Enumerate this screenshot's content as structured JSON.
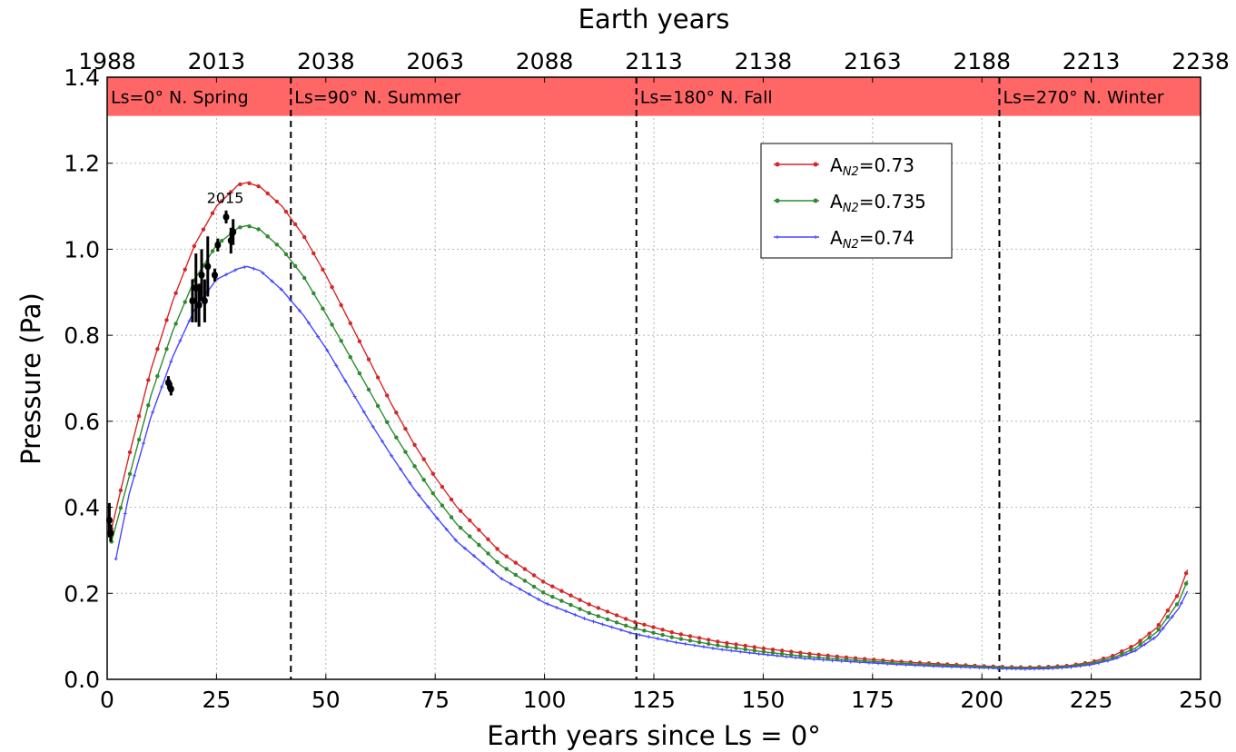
{
  "chart_data": {
    "type": "line",
    "xlabel": "Earth years since Ls = 0°",
    "ylabel": "Pressure (Pa)",
    "top_xlabel": "Earth years",
    "xlim": [
      0,
      250
    ],
    "ylim": [
      0.0,
      1.4
    ],
    "x_ticks": [
      0,
      25,
      50,
      75,
      100,
      125,
      150,
      175,
      200,
      225,
      250
    ],
    "y_ticks": [
      "0.0",
      "0.2",
      "0.4",
      "0.6",
      "0.8",
      "1.0",
      "1.2",
      "1.4"
    ],
    "top_x_ticks": [
      "1988",
      "2013",
      "2038",
      "2063",
      "2088",
      "2113",
      "2138",
      "2163",
      "2188",
      "2213",
      "2238"
    ],
    "grid": true,
    "legend_position": "upper-right",
    "season_band": {
      "y_range": [
        1.31,
        1.4
      ],
      "color": "#ff6666",
      "boundaries": [
        0,
        42,
        121,
        204,
        250
      ],
      "labels": [
        "Ls=0°  N. Spring",
        "Ls=90°  N. Summer",
        "Ls=180°  N. Fall",
        "Ls=270°  N. Winter"
      ],
      "dashed_lines_x": [
        42,
        121,
        204
      ]
    },
    "annotation": {
      "text": "2015",
      "x": 27,
      "y": 1.12
    },
    "series": [
      {
        "name_prefix": "A",
        "name_subscript": "N2",
        "name_value": "=0.73",
        "color": "#d62728",
        "marker": "circle",
        "x": [
          1,
          5,
          10,
          15,
          20,
          25,
          30,
          32,
          35,
          40,
          45,
          50,
          55,
          60,
          65,
          70,
          75,
          80,
          90,
          100,
          110,
          120,
          130,
          140,
          150,
          160,
          170,
          180,
          190,
          200,
          205,
          210,
          215,
          220,
          225,
          230,
          235,
          240,
          245,
          247
        ],
        "y": [
          0.35,
          0.52,
          0.72,
          0.88,
          1.01,
          1.1,
          1.15,
          1.155,
          1.145,
          1.1,
          1.03,
          0.94,
          0.84,
          0.74,
          0.64,
          0.55,
          0.47,
          0.4,
          0.295,
          0.225,
          0.175,
          0.135,
          0.107,
          0.087,
          0.072,
          0.06,
          0.05,
          0.042,
          0.036,
          0.031,
          0.029,
          0.028,
          0.029,
          0.032,
          0.04,
          0.055,
          0.08,
          0.12,
          0.2,
          0.255
        ]
      },
      {
        "name_prefix": "A",
        "name_subscript": "N2",
        "name_value": "=0.735",
        "color": "#2e8b2e",
        "marker": "circle",
        "x": [
          1,
          5,
          10,
          15,
          20,
          25,
          30,
          32,
          35,
          40,
          45,
          50,
          55,
          60,
          65,
          70,
          75,
          80,
          90,
          100,
          110,
          120,
          130,
          140,
          150,
          160,
          170,
          180,
          190,
          200,
          205,
          210,
          215,
          220,
          225,
          230,
          235,
          240,
          245,
          247
        ],
        "y": [
          0.32,
          0.47,
          0.66,
          0.81,
          0.93,
          1.01,
          1.05,
          1.055,
          1.045,
          1.0,
          0.935,
          0.85,
          0.76,
          0.67,
          0.58,
          0.5,
          0.425,
          0.36,
          0.265,
          0.2,
          0.155,
          0.12,
          0.096,
          0.078,
          0.064,
          0.053,
          0.045,
          0.038,
          0.033,
          0.029,
          0.027,
          0.026,
          0.027,
          0.03,
          0.037,
          0.05,
          0.072,
          0.11,
          0.18,
          0.23
        ]
      },
      {
        "name_prefix": "A",
        "name_subscript": "N2",
        "name_value": "=0.74",
        "color": "#4646ff",
        "marker": "plus",
        "x": [
          2,
          5,
          10,
          15,
          20,
          25,
          30,
          32,
          35,
          40,
          45,
          50,
          55,
          60,
          65,
          70,
          75,
          80,
          90,
          100,
          110,
          120,
          130,
          140,
          150,
          160,
          170,
          180,
          190,
          200,
          205,
          210,
          215,
          220,
          225,
          230,
          235,
          240,
          245,
          247
        ],
        "y": [
          0.28,
          0.43,
          0.61,
          0.75,
          0.86,
          0.93,
          0.955,
          0.96,
          0.95,
          0.905,
          0.845,
          0.77,
          0.685,
          0.6,
          0.52,
          0.445,
          0.38,
          0.32,
          0.235,
          0.178,
          0.138,
          0.107,
          0.086,
          0.07,
          0.058,
          0.048,
          0.041,
          0.035,
          0.03,
          0.027,
          0.025,
          0.024,
          0.025,
          0.028,
          0.034,
          0.046,
          0.066,
          0.1,
          0.165,
          0.205
        ]
      }
    ],
    "observations": {
      "color": "#000000",
      "points": [
        {
          "x": 0.5,
          "y": 0.37,
          "err": 0.04
        },
        {
          "x": 0.8,
          "y": 0.34,
          "err": 0.02
        },
        {
          "x": 14,
          "y": 0.69,
          "err": 0.015
        },
        {
          "x": 14.6,
          "y": 0.675,
          "err": 0.015
        },
        {
          "x": 19.5,
          "y": 0.88,
          "err": 0.05
        },
        {
          "x": 20.3,
          "y": 0.91,
          "err": 0.08
        },
        {
          "x": 21,
          "y": 0.87,
          "err": 0.05
        },
        {
          "x": 21.6,
          "y": 0.94,
          "err": 0.06
        },
        {
          "x": 22.3,
          "y": 0.88,
          "err": 0.05
        },
        {
          "x": 23,
          "y": 0.96,
          "err": 0.07
        },
        {
          "x": 24.6,
          "y": 0.94,
          "err": 0.015
        },
        {
          "x": 25.3,
          "y": 1.01,
          "err": 0.015
        },
        {
          "x": 27.2,
          "y": 1.075,
          "err": 0.015
        },
        {
          "x": 28.3,
          "y": 1.02,
          "err": 0.03
        },
        {
          "x": 28.8,
          "y": 1.04,
          "err": 0.03
        }
      ]
    }
  }
}
